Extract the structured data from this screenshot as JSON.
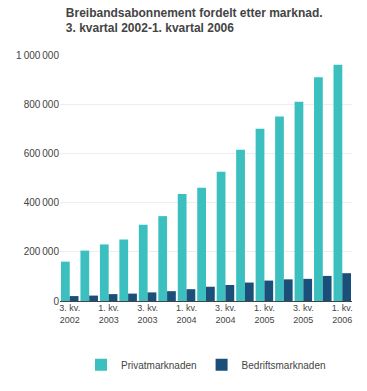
{
  "chart_data": {
    "type": "bar",
    "title": "Breibandsabonnement fordelt etter marknad.",
    "subtitle": "3. kvartal 2002-1. kvartal 2006",
    "categories": [
      "3. kv.\n2002",
      null,
      "1. kv.\n2003",
      null,
      "3. kv.\n2003",
      null,
      "1. kv.\n2004",
      null,
      "3. kv.\n2004",
      null,
      "1. kv.\n2005",
      null,
      "3. kv.\n2005",
      null,
      "1. kv.\n2006"
    ],
    "series": [
      {
        "name": "Privatmarknaden",
        "color": "#3bbfbf",
        "values": [
          160000,
          205000,
          230000,
          250000,
          310000,
          345000,
          435000,
          460000,
          525000,
          615000,
          700000,
          750000,
          810000,
          910000,
          960000
        ]
      },
      {
        "name": "Bedriftsmarknaden",
        "color": "#1a4f7a",
        "values": [
          20000,
          22000,
          28000,
          30000,
          35000,
          40000,
          48000,
          58000,
          65000,
          75000,
          83000,
          88000,
          90000,
          102000,
          113000
        ]
      }
    ],
    "ylim": [
      0,
      1000000
    ],
    "yticks": [
      0,
      {
        "value": 200000,
        "label": "200 000"
      },
      {
        "value": 400000,
        "label": "400 000"
      },
      {
        "value": 600000,
        "label": "600 000"
      },
      {
        "value": 800000,
        "label": "800 000"
      },
      {
        "value": 1000000,
        "label": "1 000 000"
      }
    ],
    "grid": true,
    "legend": "bottom"
  }
}
